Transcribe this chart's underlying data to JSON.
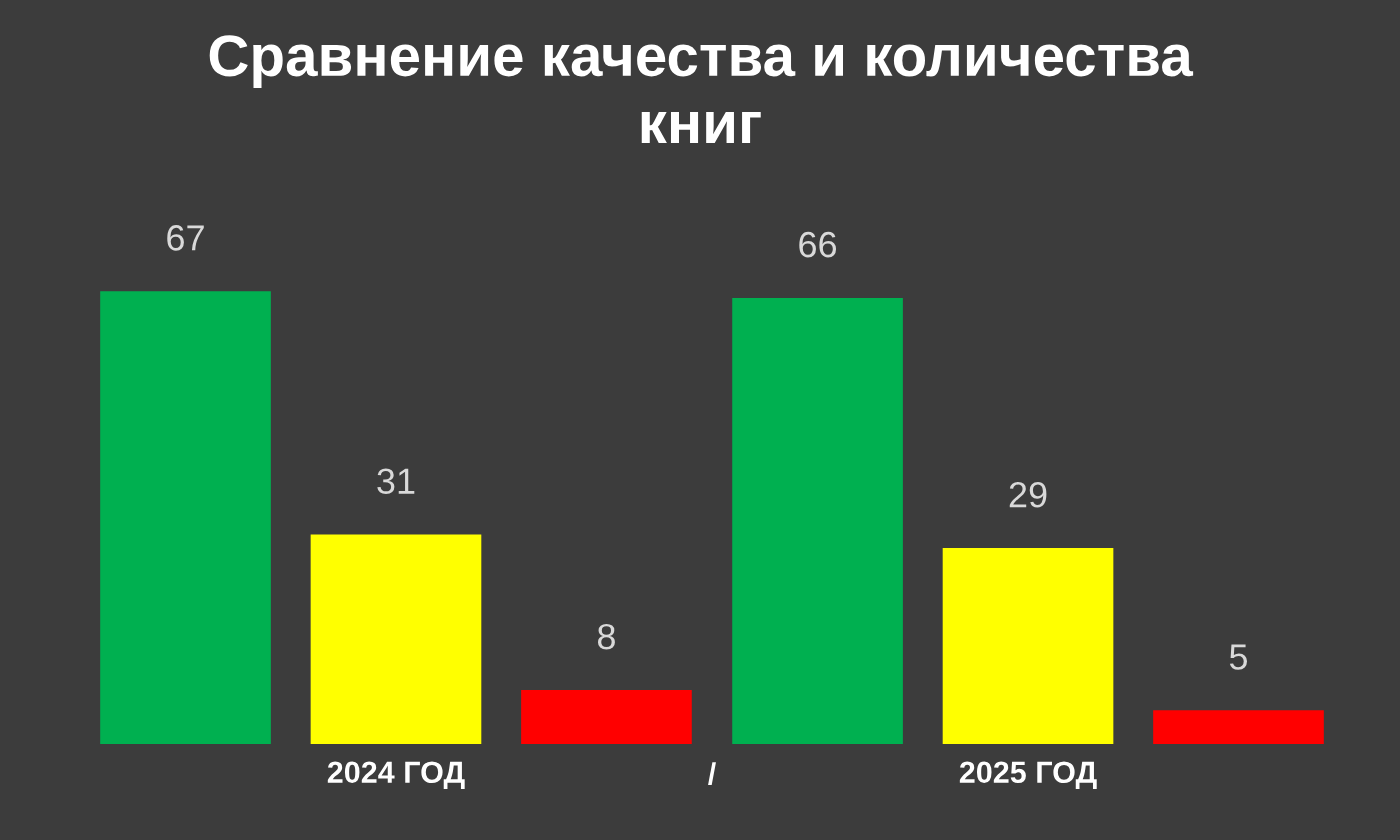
{
  "chart_data": {
    "type": "bar",
    "title": "Сравнение качества и количества\nкниг",
    "categories": [
      "2024 ГОД",
      "2025 ГОД"
    ],
    "series": [
      {
        "color": "#00b050",
        "values": [
          67,
          66
        ]
      },
      {
        "color": "#ffff00",
        "values": [
          31,
          29
        ]
      },
      {
        "color": "#ff0000",
        "values": [
          8,
          5
        ]
      }
    ],
    "data_labels": true,
    "tick_labels": "x",
    "grid": false,
    "legend": false,
    "annotations": [
      "/"
    ]
  }
}
